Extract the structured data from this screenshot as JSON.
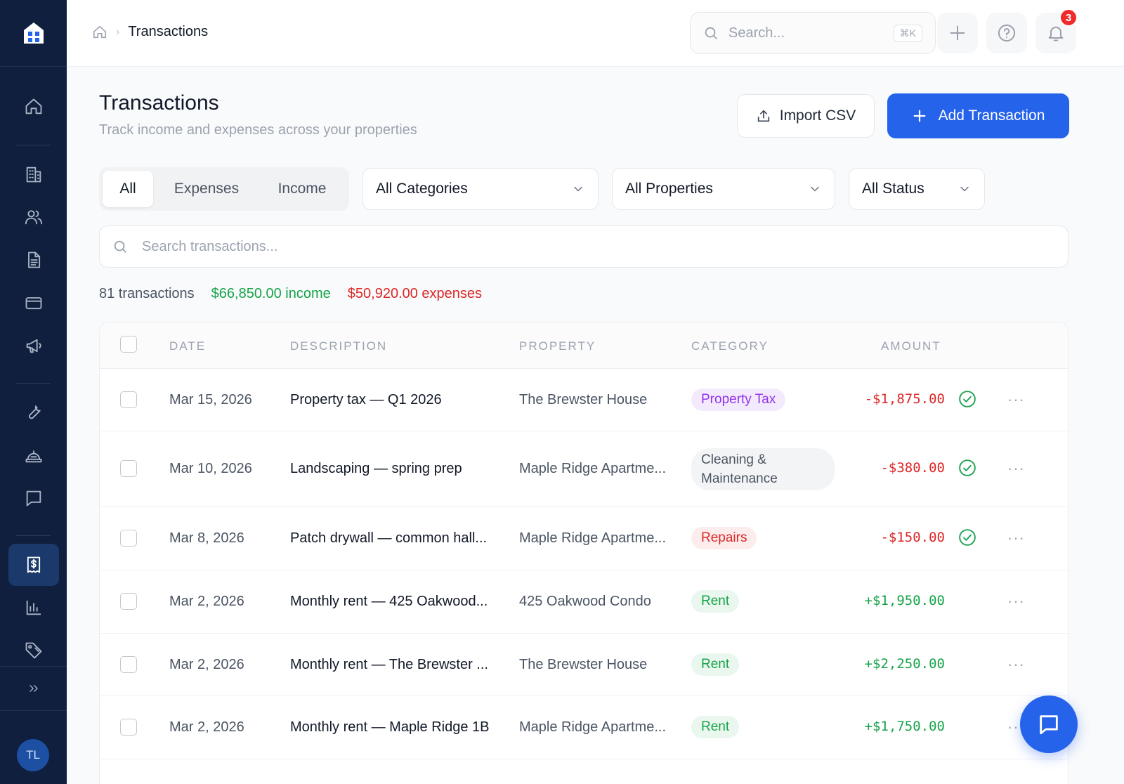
{
  "sidebar": {
    "logo_icon": "home-logo-icon",
    "nav_icons": [
      "home-icon",
      "building-icon",
      "users-icon",
      "document-icon",
      "credit-card-icon",
      "megaphone-icon",
      "wrench-icon",
      "inspection-icon",
      "chat-icon",
      "receipt-dollar-icon",
      "bar-chart-icon",
      "tag-icon"
    ],
    "active_item": "receipt-dollar-icon",
    "expand_icon": "chevrons-right-icon",
    "avatar_initials": "TL"
  },
  "topbar": {
    "breadcrumb_current": "Transactions",
    "search_placeholder": "Search...",
    "search_shortcut": "⌘K",
    "notification_count": "3"
  },
  "header": {
    "title": "Transactions",
    "subtitle": "Track income and expenses across your properties",
    "import_label": "Import CSV",
    "add_label": "Add Transaction"
  },
  "filters": {
    "tabs": [
      {
        "label": "All",
        "active": true
      },
      {
        "label": "Expenses",
        "active": false
      },
      {
        "label": "Income",
        "active": false
      }
    ],
    "category": "All Categories",
    "property": "All Properties",
    "status": "All Status",
    "search_placeholder": "Search transactions..."
  },
  "summary": {
    "count": "81 transactions",
    "income": "$66,850.00 income",
    "expenses": "$50,920.00 expenses"
  },
  "table": {
    "columns": [
      "DATE",
      "DESCRIPTION",
      "PROPERTY",
      "CATEGORY",
      "AMOUNT"
    ],
    "rows": [
      {
        "date": "Mar 15, 2026",
        "description": "Property tax — Q1 2026",
        "property": "The Brewster House",
        "category": "Property Tax",
        "category_color": "#9333ea",
        "category_bg": "#f3ebfd",
        "amount": "-$1,875.00",
        "sign": "neg",
        "reconciled": true
      },
      {
        "date": "Mar 10, 2026",
        "description": "Landscaping — spring prep",
        "property": "Maple Ridge Apartme...",
        "category": "Cleaning & Maintenance",
        "category_color": "#4b5563",
        "category_bg": "#f3f4f6",
        "amount": "-$380.00",
        "sign": "neg",
        "reconciled": true
      },
      {
        "date": "Mar 8, 2026",
        "description": "Patch drywall — common hall...",
        "property": "Maple Ridge Apartme...",
        "category": "Repairs",
        "category_color": "#dc2626",
        "category_bg": "#fdecec",
        "amount": "-$150.00",
        "sign": "neg",
        "reconciled": true
      },
      {
        "date": "Mar 2, 2026",
        "description": "Monthly rent — 425 Oakwood...",
        "property": "425 Oakwood Condo",
        "category": "Rent",
        "category_color": "#16a34a",
        "category_bg": "#eaf7ee",
        "amount": "+$1,950.00",
        "sign": "pos",
        "reconciled": false
      },
      {
        "date": "Mar 2, 2026",
        "description": "Monthly rent — The Brewster ...",
        "property": "The Brewster House",
        "category": "Rent",
        "category_color": "#16a34a",
        "category_bg": "#eaf7ee",
        "amount": "+$2,250.00",
        "sign": "pos",
        "reconciled": false
      },
      {
        "date": "Mar 2, 2026",
        "description": "Monthly rent — Maple Ridge 1B",
        "property": "Maple Ridge Apartme...",
        "category": "Rent",
        "category_color": "#16a34a",
        "category_bg": "#eaf7ee",
        "amount": "+$1,750.00",
        "sign": "pos",
        "reconciled": false
      }
    ]
  },
  "chat_fab_icon": "chat-bubble-icon"
}
